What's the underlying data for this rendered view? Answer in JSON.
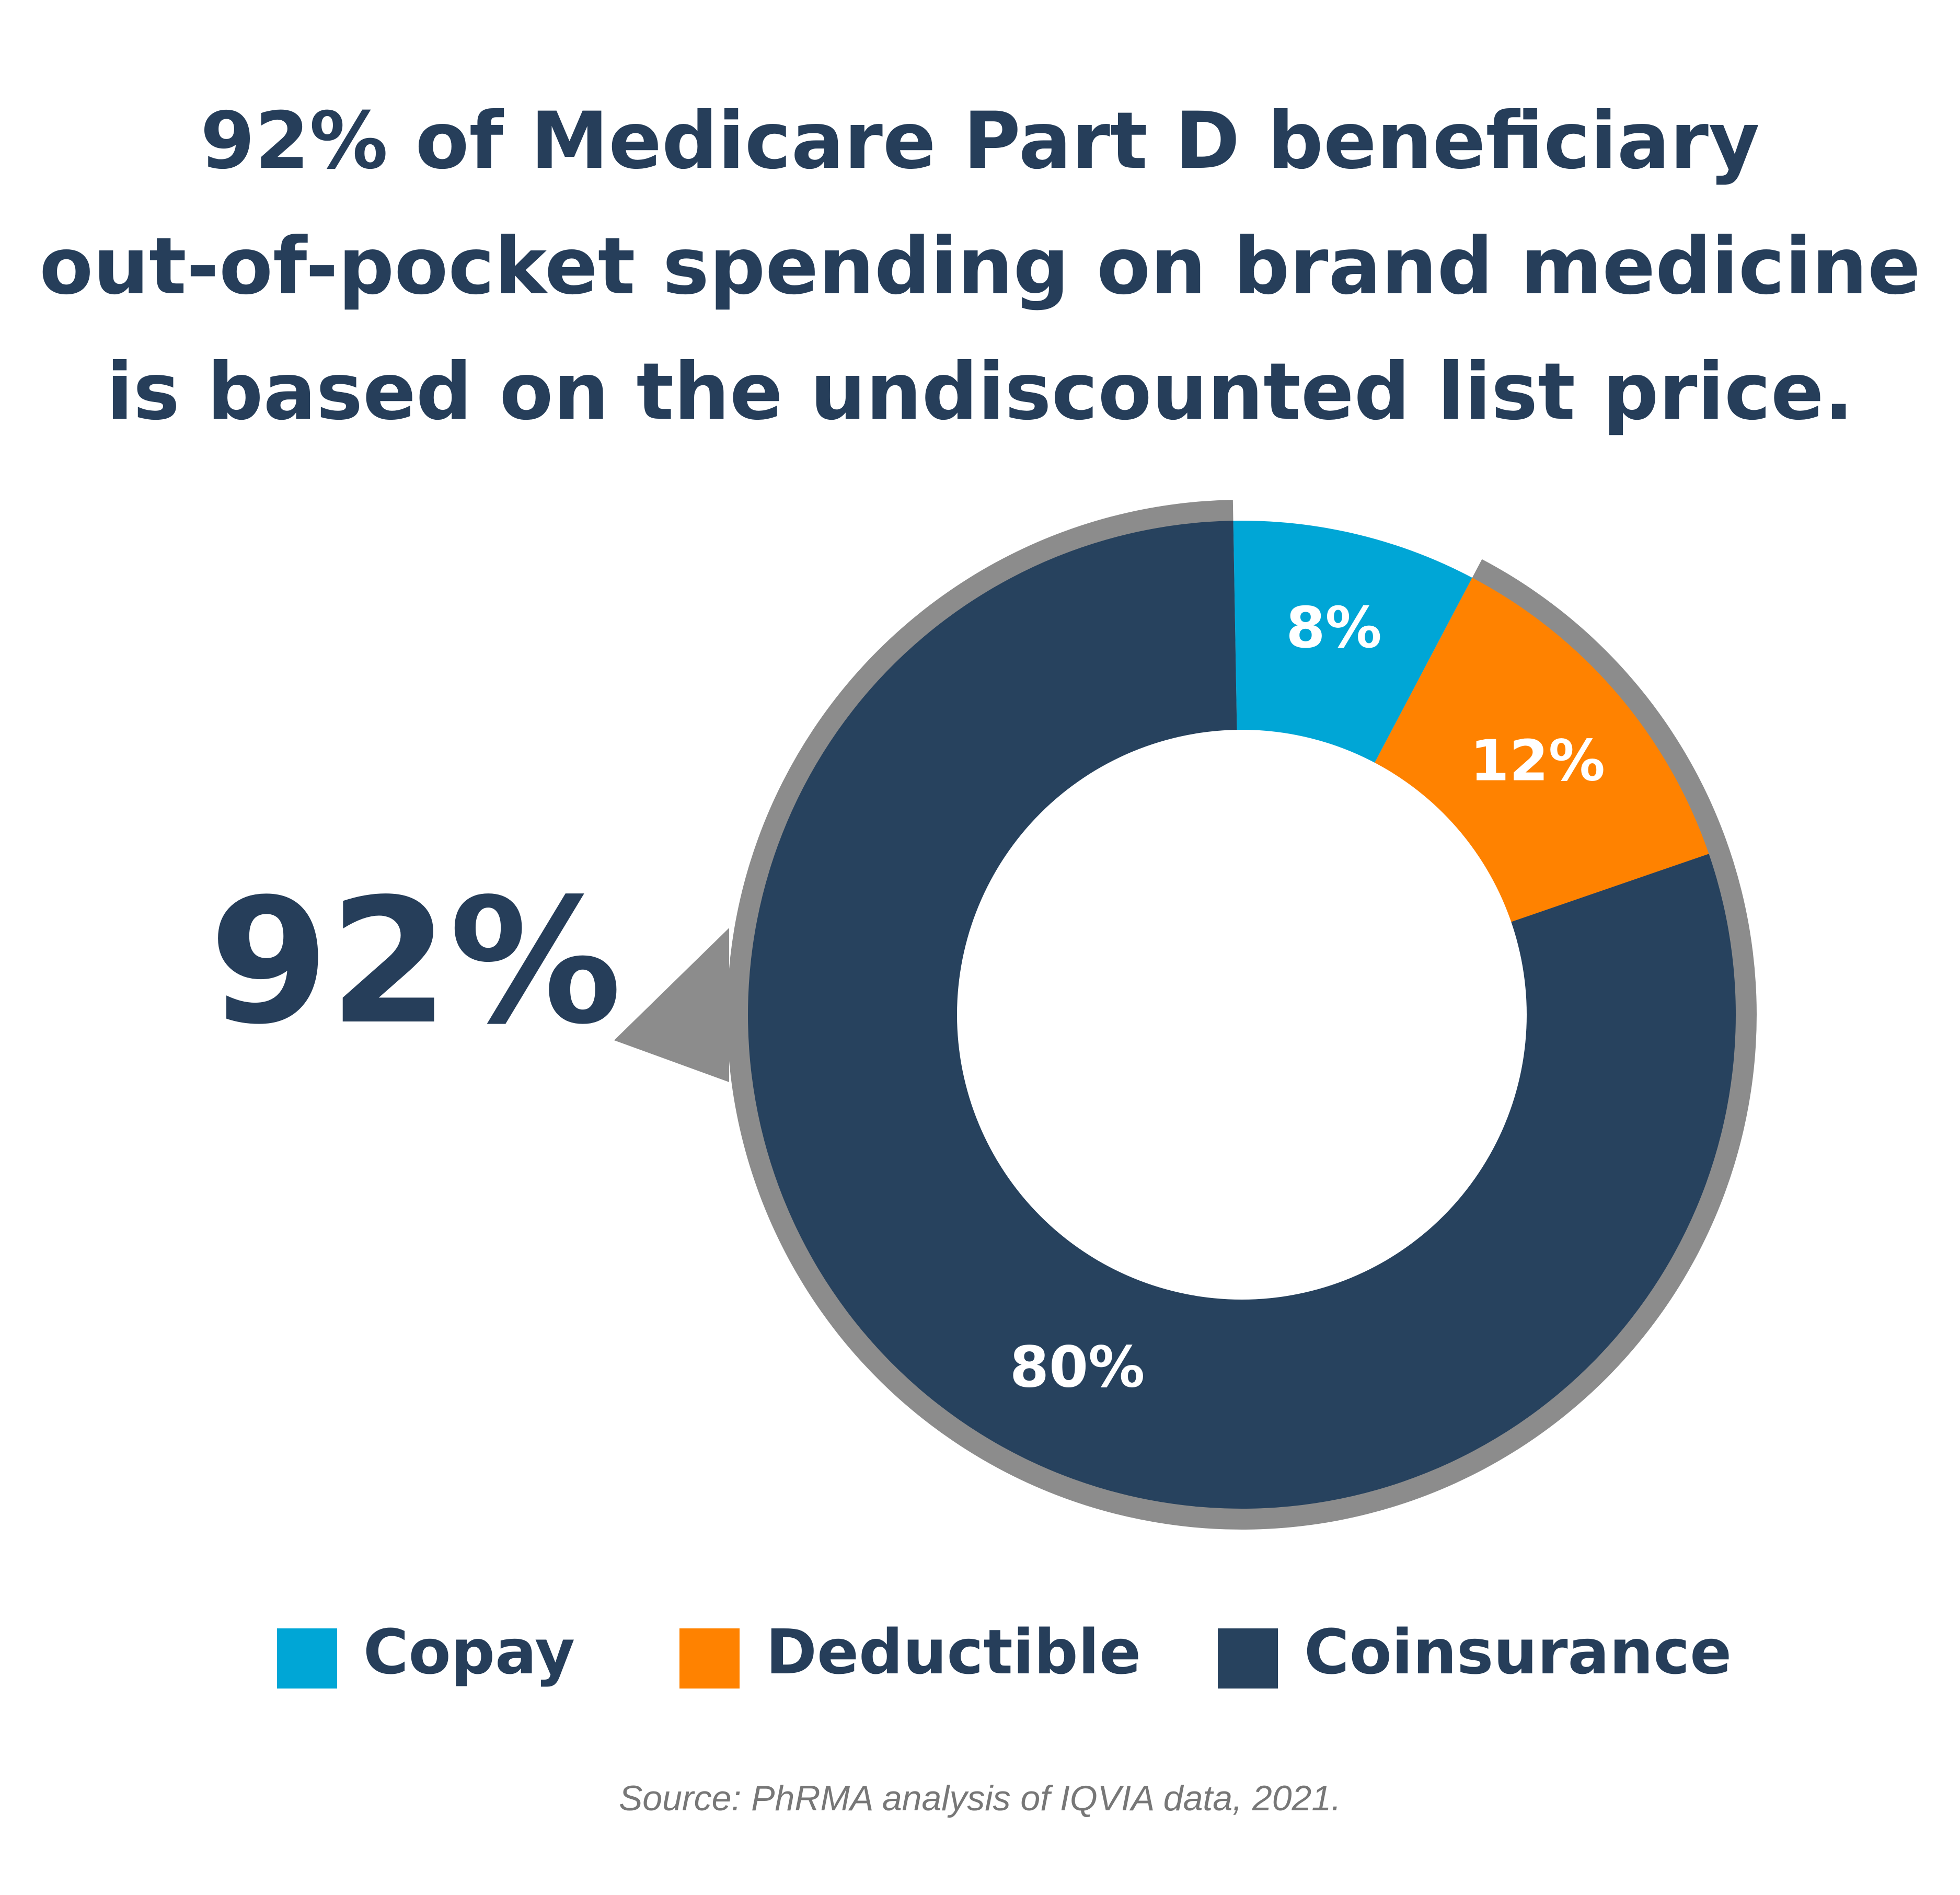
{
  "title_lines": [
    "92% of Medicare Part D beneficiary",
    "out-of-pocket spending on brand medicine",
    "is based on the undiscounted list price."
  ],
  "callout_value": "92%",
  "source": "Source: PhRMA analysis of IQVIA data, 2021.",
  "colors": {
    "copay": "#00a6d6",
    "deductible": "#ff8200",
    "coinsurance": "#27425e",
    "highlight_ring": "#8c8c8c",
    "text": "#263e5a"
  },
  "chart_data": {
    "type": "pie",
    "variant": "donut",
    "categories": [
      "Copay",
      "Deductible",
      "Coinsurance"
    ],
    "values": [
      8,
      12,
      80
    ],
    "data_labels": [
      "8%",
      "12%",
      "80%"
    ],
    "highlighted_total": 92,
    "highlighted_categories": [
      "Deductible",
      "Coinsurance"
    ],
    "legend_position": "bottom"
  },
  "legend": {
    "items": [
      {
        "label": "Copay"
      },
      {
        "label": "Deductible"
      },
      {
        "label": "Coinsurance"
      }
    ]
  }
}
